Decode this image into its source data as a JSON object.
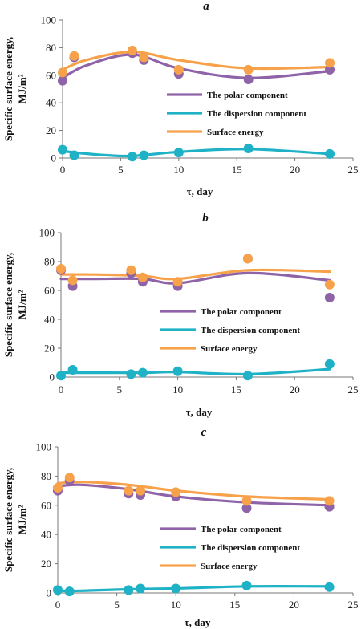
{
  "colors": {
    "polar": "#8e63a8",
    "dispersion": "#1fb2c6",
    "surface": "#f7a14a"
  },
  "chart_data": [
    {
      "type": "scatter",
      "panel": "a",
      "xlabel": "τ, day",
      "ylabel": "Specific surface energy, MJ/m²",
      "xlim": [
        0,
        25
      ],
      "ylim": [
        0,
        100
      ],
      "xticks": [
        0,
        5,
        10,
        15,
        20,
        25
      ],
      "yticks": [
        0,
        20,
        40,
        60,
        80,
        100
      ],
      "grid": false,
      "legend_position": "center-right",
      "series": [
        {
          "name": "The polar component",
          "x": [
            0,
            1,
            6,
            7,
            10,
            16,
            23
          ],
          "y": [
            56,
            73,
            76,
            71,
            61,
            57,
            64
          ],
          "fit": [
            [
              0,
              58
            ],
            [
              2,
              67
            ],
            [
              6,
              75
            ],
            [
              10,
              65
            ],
            [
              16,
              58
            ],
            [
              23,
              63
            ]
          ]
        },
        {
          "name": "The dispersion component",
          "x": [
            0,
            1,
            6,
            7,
            10,
            16,
            23
          ],
          "y": [
            6,
            2,
            1,
            2,
            4,
            7,
            3
          ],
          "fit": [
            [
              0,
              5
            ],
            [
              3,
              2.5
            ],
            [
              6,
              1.5
            ],
            [
              10,
              4.5
            ],
            [
              16,
              6.5
            ],
            [
              23,
              3
            ]
          ]
        },
        {
          "name": "Surface energy",
          "x": [
            0,
            1,
            6,
            7,
            10,
            16,
            23
          ],
          "y": [
            62,
            74,
            78,
            73,
            64,
            64,
            69
          ],
          "fit": [
            [
              0,
              64
            ],
            [
              2,
              71
            ],
            [
              6,
              77
            ],
            [
              10,
              71
            ],
            [
              16,
              65
            ],
            [
              23,
              66
            ]
          ]
        }
      ]
    },
    {
      "type": "scatter",
      "panel": "b",
      "xlabel": "τ, day",
      "ylabel": "Specific surface energy, MJ/m²",
      "xlim": [
        0,
        25
      ],
      "ylim": [
        0,
        100
      ],
      "xticks": [
        0,
        5,
        10,
        15,
        20,
        25
      ],
      "yticks": [
        0,
        20,
        40,
        60,
        80,
        100
      ],
      "grid": false,
      "legend_position": "center-right",
      "series": [
        {
          "name": "The polar component",
          "x": [
            0,
            1,
            6,
            7,
            10,
            16,
            23
          ],
          "y": [
            74,
            63,
            72,
            66,
            63,
            82,
            55
          ],
          "fit": [
            [
              0,
              68
            ],
            [
              3,
              68
            ],
            [
              7,
              68
            ],
            [
              10,
              65
            ],
            [
              16,
              72
            ],
            [
              23,
              67
            ]
          ]
        },
        {
          "name": "The dispersion component",
          "x": [
            0,
            1,
            6,
            7,
            10,
            16,
            23
          ],
          "y": [
            1,
            5,
            2,
            3,
            4,
            1,
            9
          ],
          "fit": [
            [
              0,
              3
            ],
            [
              3,
              3
            ],
            [
              7,
              3
            ],
            [
              10,
              3.5
            ],
            [
              16,
              2
            ],
            [
              23,
              5.5
            ]
          ]
        },
        {
          "name": "Surface energy",
          "x": [
            0,
            1,
            6,
            7,
            10,
            16,
            23
          ],
          "y": [
            75,
            67,
            74,
            69,
            66,
            82,
            64
          ],
          "fit": [
            [
              0,
              71
            ],
            [
              3,
              71
            ],
            [
              7,
              70
            ],
            [
              10,
              68
            ],
            [
              16,
              74
            ],
            [
              23,
              73
            ]
          ]
        }
      ]
    },
    {
      "type": "scatter",
      "panel": "c",
      "xlabel": "τ, day",
      "ylabel": "Specific surface energy, MJ/m²",
      "xlim": [
        0,
        25
      ],
      "ylim": [
        0,
        100
      ],
      "xticks": [
        0,
        5,
        10,
        15,
        20,
        25
      ],
      "yticks": [
        0,
        20,
        40,
        60,
        80,
        100
      ],
      "grid": false,
      "legend_position": "center-right",
      "series": [
        {
          "name": "The polar component",
          "x": [
            0,
            1,
            6,
            7,
            10,
            16,
            23
          ],
          "y": [
            70,
            77,
            68,
            67,
            66,
            58,
            59
          ],
          "fit": [
            [
              0,
              73
            ],
            [
              2,
              74
            ],
            [
              6,
              71
            ],
            [
              10,
              66
            ],
            [
              16,
              62
            ],
            [
              23,
              60
            ]
          ]
        },
        {
          "name": "The dispersion component",
          "x": [
            0,
            1,
            6,
            7,
            10,
            16,
            23
          ],
          "y": [
            2,
            1,
            2,
            3,
            3,
            5,
            4
          ],
          "fit": [
            [
              0,
              1.5
            ],
            [
              2,
              1.5
            ],
            [
              6,
              2.5
            ],
            [
              10,
              3
            ],
            [
              16,
              4.5
            ],
            [
              23,
              4.5
            ]
          ]
        },
        {
          "name": "Surface energy",
          "x": [
            0,
            1,
            6,
            7,
            10,
            16,
            23
          ],
          "y": [
            72,
            79,
            70,
            70,
            69,
            63,
            63
          ],
          "fit": [
            [
              0,
              75
            ],
            [
              2,
              76
            ],
            [
              6,
              74
            ],
            [
              10,
              70
            ],
            [
              16,
              66
            ],
            [
              23,
              64
            ]
          ]
        }
      ]
    }
  ]
}
